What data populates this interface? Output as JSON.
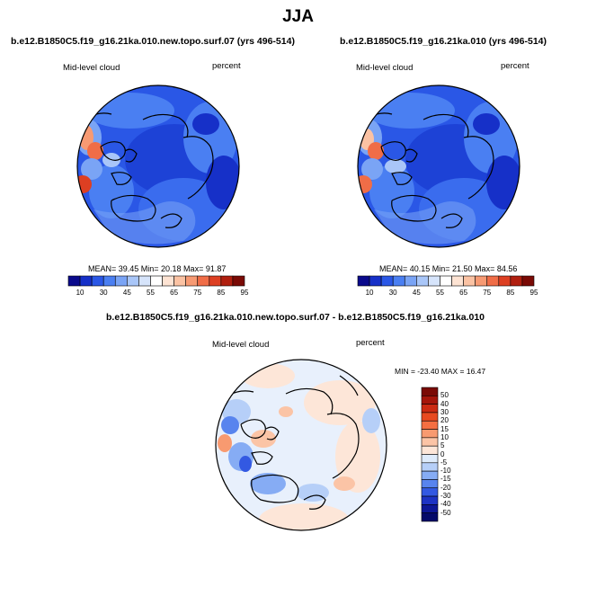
{
  "title": "JJA",
  "variable": "Mid-level cloud",
  "units": "percent",
  "panels": [
    {
      "title": "b.e12.B1850C5.f19_g16.21ka.010.new.topo.surf.07 (yrs 496-514)",
      "stats": "MEAN= 39.45  Min= 20.18  Max= 91.87"
    },
    {
      "title": "b.e12.B1850C5.f19_g16.21ka.010 (yrs 496-514)",
      "stats": "MEAN= 40.15  Min= 21.50  Max= 84.56"
    }
  ],
  "colorbar_abs": {
    "labels": [
      "10",
      "30",
      "45",
      "55",
      "65",
      "75",
      "85",
      "95"
    ],
    "colors": [
      "#0a0a8c",
      "#1630c8",
      "#2a57e6",
      "#4a7ff2",
      "#7aa4f5",
      "#a9c6f8",
      "#d6e4fb",
      "#ffffff",
      "#fde3d3",
      "#fbc2a3",
      "#f79a73",
      "#f06d47",
      "#dd3f22",
      "#b01f0f",
      "#7a0a05"
    ]
  },
  "diff": {
    "title": "b.e12.B1850C5.f19_g16.21ka.010.new.topo.surf.07 - b.e12.B1850C5.f19_g16.21ka.010",
    "stats": "MIN = -23.40 MAX =  16.47",
    "colorbar": {
      "labels": [
        "50",
        "40",
        "30",
        "20",
        "15",
        "10",
        "5",
        "0",
        "-5",
        "-10",
        "-15",
        "-20",
        "-30",
        "-40",
        "-50"
      ],
      "colors": [
        "#7a0a05",
        "#a5150a",
        "#cc2a12",
        "#e84a20",
        "#f56f42",
        "#f89a70",
        "#fbc4a6",
        "#fde6d8",
        "#deebfb",
        "#b6cff8",
        "#86acf4",
        "#5884ee",
        "#3359e2",
        "#1d33c4",
        "#0d1796",
        "#050a6a"
      ]
    }
  }
}
